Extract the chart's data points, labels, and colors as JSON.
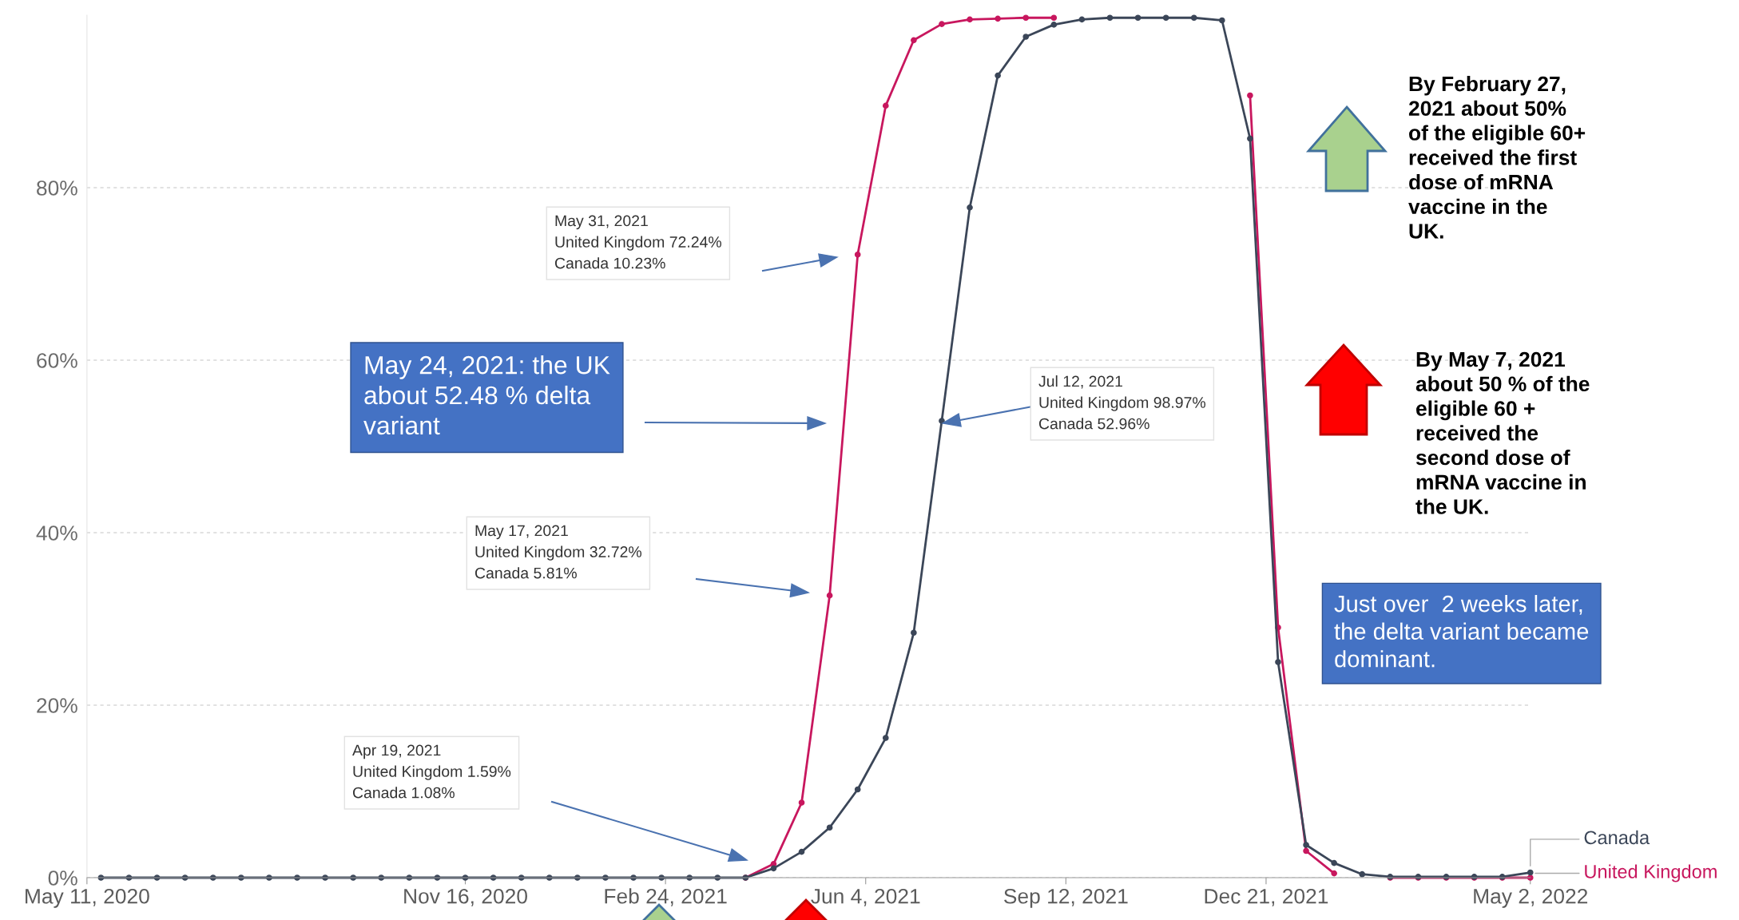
{
  "chart_data": {
    "type": "line",
    "x": [
      "2020-05-18",
      "2020-06-01",
      "2020-06-15",
      "2020-06-29",
      "2020-07-13",
      "2020-07-27",
      "2020-08-10",
      "2020-08-24",
      "2020-09-07",
      "2020-09-21",
      "2020-10-05",
      "2020-10-19",
      "2020-11-02",
      "2020-11-16",
      "2020-11-30",
      "2020-12-14",
      "2020-12-28",
      "2021-01-11",
      "2021-01-25",
      "2021-02-08",
      "2021-02-22",
      "2021-03-08",
      "2021-03-22",
      "2021-04-05",
      "2021-04-19",
      "2021-05-03",
      "2021-05-17",
      "2021-05-31",
      "2021-06-14",
      "2021-06-28",
      "2021-07-12",
      "2021-07-26",
      "2021-08-09",
      "2021-08-23",
      "2021-09-06",
      "2021-09-20",
      "2021-10-04",
      "2021-10-18",
      "2021-11-01",
      "2021-11-15",
      "2021-11-29",
      "2021-12-13",
      "2021-12-27",
      "2022-01-10",
      "2022-01-24",
      "2022-02-07",
      "2022-02-21",
      "2022-03-07",
      "2022-03-21",
      "2022-04-04",
      "2022-04-18",
      "2022-05-02"
    ],
    "series": [
      {
        "name": "United Kingdom",
        "color": "#c8175e",
        "values": [
          null,
          null,
          null,
          null,
          null,
          null,
          null,
          null,
          null,
          null,
          null,
          null,
          null,
          null,
          null,
          null,
          null,
          null,
          null,
          null,
          null,
          null,
          null,
          0,
          1.59,
          8.7,
          32.72,
          72.24,
          89.5,
          97.1,
          98.97,
          99.5,
          99.6,
          99.7,
          99.7,
          null,
          null,
          null,
          null,
          null,
          null,
          90.7,
          29.0,
          3.1,
          0.5,
          null,
          0,
          0,
          0,
          0,
          0,
          0
        ]
      },
      {
        "name": "Canada",
        "color": "#3b4658",
        "values": [
          0,
          0,
          0,
          0,
          0,
          0,
          0,
          0,
          0,
          0,
          0,
          0,
          0,
          0,
          0,
          0,
          0,
          0,
          0,
          0,
          0,
          0,
          0,
          0,
          1.08,
          3.0,
          5.81,
          10.23,
          16.2,
          28.4,
          52.96,
          77.7,
          93.0,
          97.5,
          98.9,
          99.5,
          99.7,
          99.7,
          99.7,
          99.7,
          99.4,
          85.7,
          25.0,
          3.8,
          1.7,
          0.4,
          0.1,
          0.1,
          0.1,
          0.1,
          0.1,
          0.6
        ]
      }
    ],
    "xlim": [
      "2020-05-11",
      "2022-05-02"
    ],
    "xticks": [
      {
        "value": "2020-05-11",
        "label": "May 11, 2020"
      },
      {
        "value": "2020-11-16",
        "label": "Nov 16, 2020"
      },
      {
        "value": "2021-02-24",
        "label": "Feb 24, 2021"
      },
      {
        "value": "2021-06-04",
        "label": "Jun 4, 2021"
      },
      {
        "value": "2021-09-12",
        "label": "Sep 12, 2021"
      },
      {
        "value": "2021-12-21",
        "label": "Dec 21, 2021"
      },
      {
        "value": "2022-05-02",
        "label": "May 2, 2022"
      }
    ],
    "ylim": [
      0,
      100
    ],
    "yticks": [
      {
        "value": 0,
        "label": "0%"
      },
      {
        "value": 20,
        "label": "20%"
      },
      {
        "value": 40,
        "label": "40%"
      },
      {
        "value": 60,
        "label": "60%"
      },
      {
        "value": 80,
        "label": "80%"
      }
    ],
    "grid": "y",
    "legend": "right",
    "marker": "circle",
    "line_style": "solid",
    "annotations": [
      "Apr 19, 2021\nUnited Kingdom 1.59%\nCanada 1.08%",
      "May 17, 2021\nUnited Kingdom 32.72%\nCanada 5.81%",
      "May 31, 2021\nUnited Kingdom 72.24%\nCanada 10.23%",
      "May 24, 2021: the UK\nabout 52.48 % delta\nvariant",
      "Jul 12, 2021\nUnited Kingdom 98.97%\nCanada 52.96%",
      "By February 27,\n2021 about 50%\nof the eligible 60+\nreceived the first\ndose of mRNA\nvaccine in the\nUK.",
      "By May 7, 2021\nabout 50 % of the\neligible 60 +\nreceived the\nsecond dose of\nmRNA vaccine in\nthe UK.",
      "Just over  2 weeks later,\nthe delta variant became\ndominant."
    ]
  }
}
